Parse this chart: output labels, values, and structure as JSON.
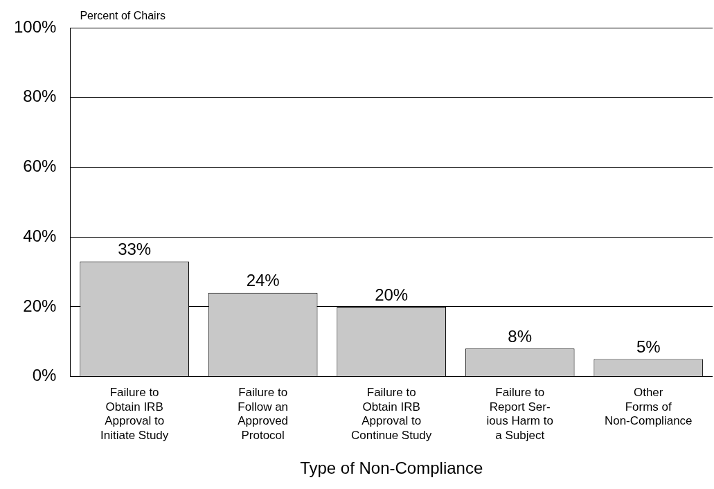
{
  "chart_data": {
    "type": "bar",
    "ylabel": "Percent of Chairs",
    "xlabel": "Type of Non-Compliance",
    "categories": [
      "Failure to\nObtain IRB\nApproval to\nInitiate Study",
      "Failure to\nFollow an\nApproved\nProtocol",
      "Failure to\nObtain IRB\nApproval to\nContinue Study",
      "Failure to\nReport Ser-\nious Harm to\na Subject",
      "Other\nForms of\nNon-Compliance"
    ],
    "values": [
      33,
      24,
      20,
      8,
      5
    ],
    "value_labels": [
      "33%",
      "24%",
      "20%",
      "8%",
      "5%"
    ],
    "color": "#c8c8c8",
    "ylim": [
      0,
      100
    ],
    "yticks": [
      {
        "value": 0,
        "label": "0%"
      },
      {
        "value": 20,
        "label": "20%"
      },
      {
        "value": 40,
        "label": "40%"
      },
      {
        "value": 60,
        "label": "60%"
      },
      {
        "value": 80,
        "label": "80%"
      },
      {
        "value": 100,
        "label": "100%"
      }
    ],
    "grid": "y",
    "legend": false
  }
}
